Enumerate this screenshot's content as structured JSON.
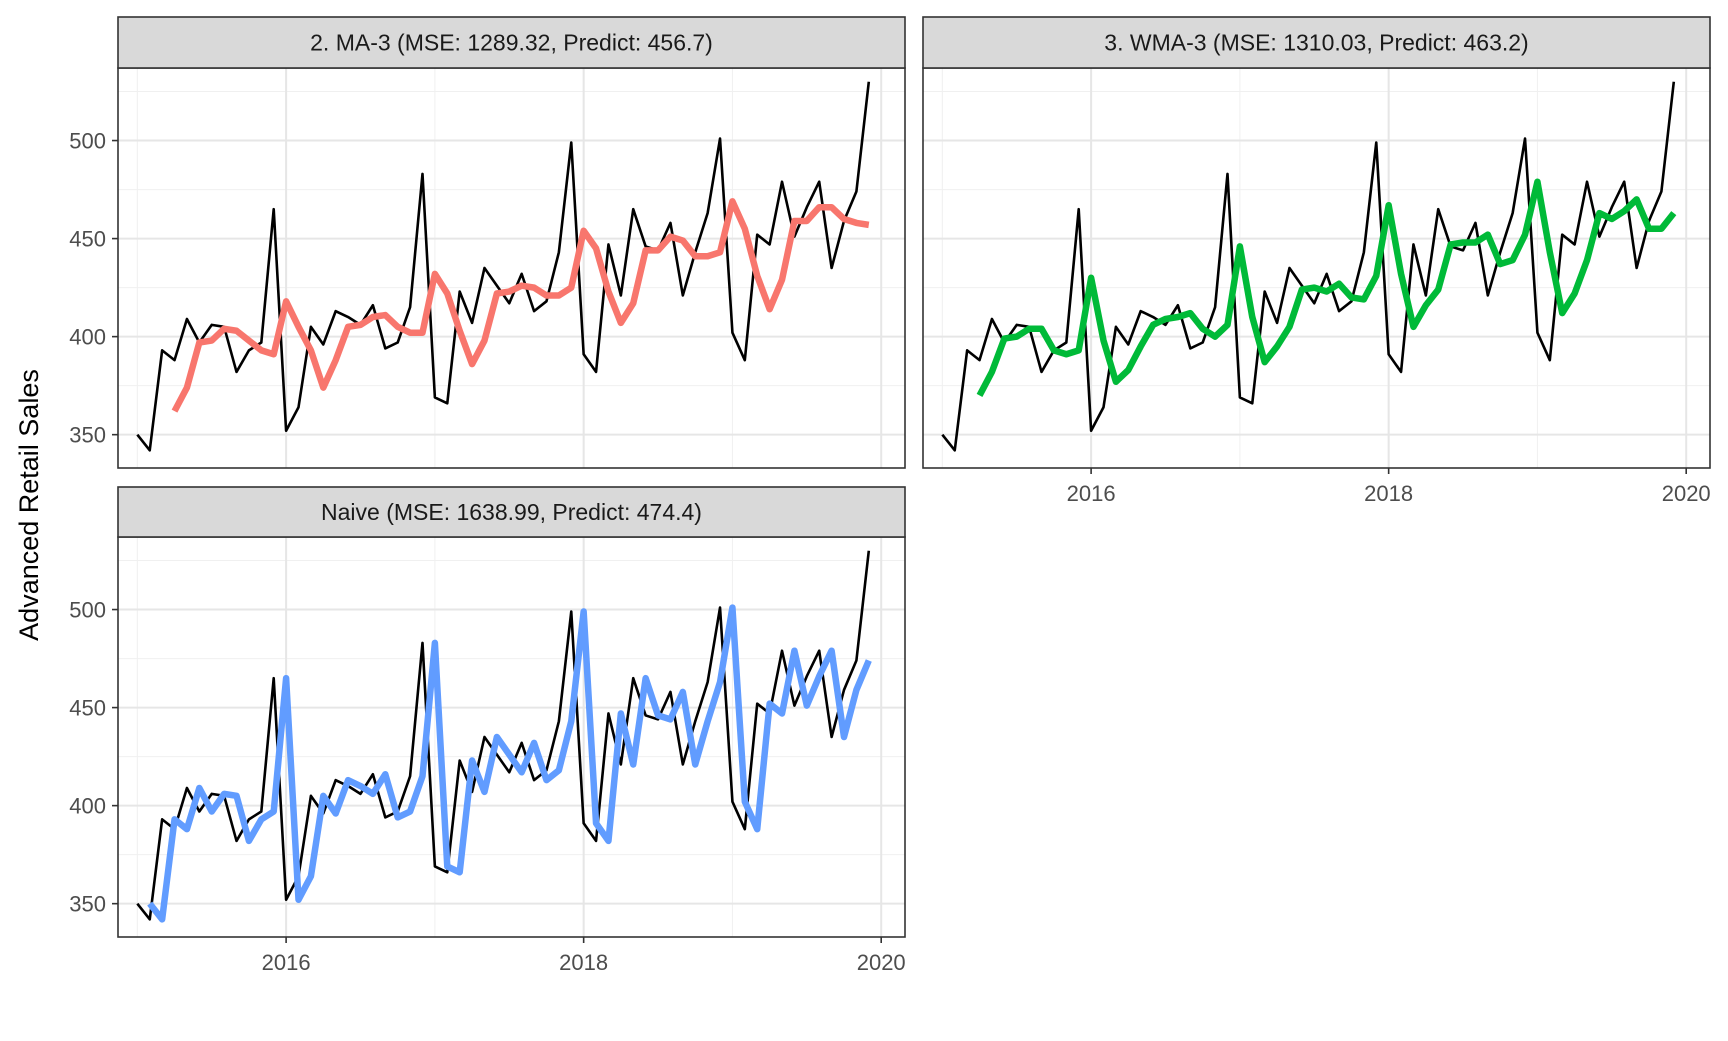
{
  "chart_data": {
    "type": "line",
    "ylabel": "Advanced Retail Sales",
    "xlabel": "",
    "x_axis": {
      "ticks": [
        2016,
        2018,
        2020
      ],
      "range": [
        2014.87,
        2020.16
      ]
    },
    "y_axis": {
      "ticks": [
        350,
        400,
        450,
        500
      ],
      "range": [
        333,
        537
      ]
    },
    "grid": true,
    "legend": "none",
    "x_start": 2015.0,
    "x_step": 0.0833333,
    "actual": {
      "color": "#000000",
      "values": [
        350,
        342,
        393,
        388,
        409,
        397,
        406,
        405,
        382,
        393,
        397,
        465,
        352,
        364,
        405,
        396,
        413,
        410,
        406,
        416,
        394,
        397,
        415,
        483,
        369,
        366,
        423,
        407,
        435,
        426,
        417,
        432,
        413,
        418,
        443,
        499,
        391,
        382,
        447,
        421,
        465,
        446,
        444,
        458,
        421,
        443,
        463,
        501,
        402,
        388,
        452,
        447,
        479,
        451,
        466,
        479,
        435,
        459,
        474,
        530
      ]
    },
    "panels": [
      {
        "title": "2. MA-3 (MSE: 1289.32, Predict: 456.7)",
        "color": "#F8766D",
        "start_index": 3,
        "values": [
          362,
          374,
          397,
          398,
          404,
          403,
          398,
          393,
          391,
          418,
          405,
          393,
          374,
          388,
          405,
          406,
          410,
          411,
          405,
          402,
          402,
          432,
          422,
          403,
          386,
          398,
          422,
          423,
          426,
          425,
          421,
          421,
          425,
          454,
          445,
          423,
          407,
          417,
          444,
          444,
          451,
          449,
          441,
          441,
          443,
          469,
          455,
          431,
          414,
          429,
          459,
          459,
          466,
          466,
          460,
          458,
          457
        ]
      },
      {
        "title": "3. WMA-3 (MSE: 1310.03, Predict: 463.2)",
        "color": "#00BA38",
        "start_index": 3,
        "values": [
          370,
          382,
          399,
          400,
          404,
          404,
          393,
          391,
          393,
          430,
          398,
          377,
          383,
          395,
          406,
          409,
          410,
          412,
          404,
          400,
          406,
          446,
          410,
          387,
          395,
          405,
          424,
          425,
          423,
          427,
          420,
          419,
          431,
          467,
          432,
          405,
          416,
          424,
          447,
          448,
          448,
          452,
          437,
          439,
          452,
          479,
          443,
          412,
          422,
          439,
          463,
          460,
          464,
          470,
          455,
          455,
          463
        ]
      },
      {
        "title": "Naive (MSE: 1638.99, Predict: 474.4)",
        "color": "#619CFF",
        "start_index": 1,
        "values": [
          350,
          342,
          393,
          388,
          409,
          397,
          406,
          405,
          382,
          393,
          397,
          465,
          352,
          364,
          405,
          396,
          413,
          410,
          406,
          416,
          394,
          397,
          415,
          483,
          369,
          366,
          423,
          407,
          435,
          426,
          417,
          432,
          413,
          418,
          443,
          499,
          391,
          382,
          447,
          421,
          465,
          446,
          444,
          458,
          421,
          443,
          463,
          501,
          402,
          388,
          452,
          447,
          479,
          451,
          466,
          479,
          435,
          459,
          474
        ]
      }
    ]
  }
}
